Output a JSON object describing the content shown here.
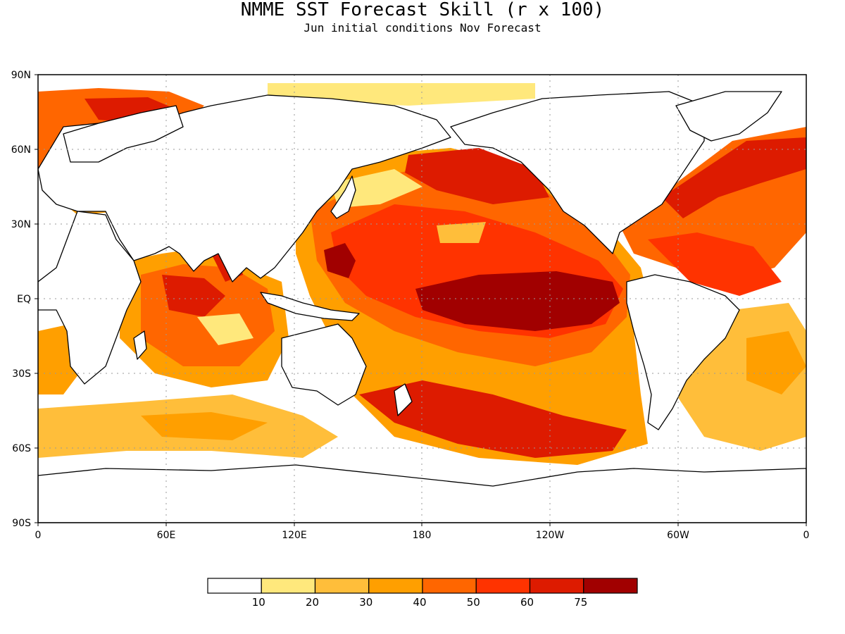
{
  "title": "NMME SST Forecast Skill (r x 100)",
  "subtitle": "Jun initial conditions  Nov Forecast",
  "axes": {
    "lat_ticks": [
      "90N",
      "60N",
      "30N",
      "EQ",
      "30S",
      "60S",
      "90S"
    ],
    "lon_ticks": [
      "0",
      "60E",
      "120E",
      "180",
      "120W",
      "60W",
      "0"
    ],
    "lat_range": [
      -90,
      90
    ],
    "lon_range": [
      0,
      360
    ],
    "grid": "dotted"
  },
  "colorbar": {
    "levels": [
      "10",
      "20",
      "30",
      "40",
      "50",
      "60",
      "75"
    ],
    "colors": [
      "#ffffff",
      "#ffe87c",
      "#ffbe3a",
      "#ff9f00",
      "#ff6600",
      "#ff3300",
      "#dd1b00",
      "#a10000"
    ]
  }
}
